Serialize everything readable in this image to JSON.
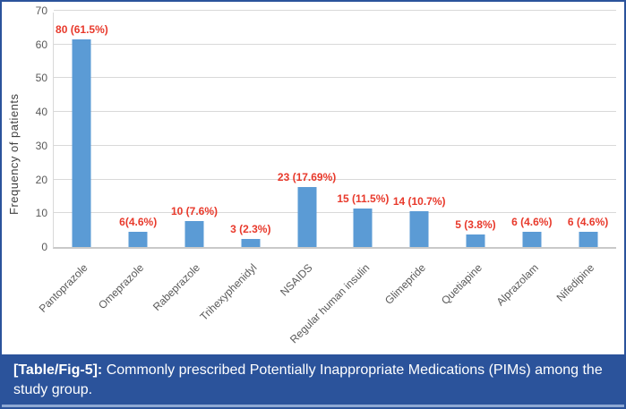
{
  "figure": {
    "caption_tag": "[Table/Fig-5]:",
    "caption_text": " Commonly prescribed Potentially Inappropriate Medications (PIMs) among the study group."
  },
  "chart_data": {
    "type": "bar",
    "title": "",
    "xlabel": "",
    "ylabel": "Frequency of patients",
    "ylim": [
      0,
      70
    ],
    "ytick_interval": 10,
    "grid": true,
    "legend": false,
    "categories": [
      "Pantoprazole",
      "Omeprazole",
      "Rabeprazole",
      "Trihexyphenidyl",
      "NSAIDS",
      "Regular human insulin",
      "Glimepride",
      "Quetiapine",
      "Alprazolam",
      "Nifedipine"
    ],
    "values": [
      61.5,
      4.6,
      7.6,
      2.3,
      17.69,
      11.5,
      10.7,
      3.8,
      4.6,
      4.6
    ],
    "patient_counts": [
      80,
      6,
      10,
      3,
      23,
      15,
      14,
      5,
      6,
      6
    ],
    "data_labels": [
      "80 (61.5%)",
      "6(4.6%)",
      "10 (7.6%)",
      "3 (2.3%)",
      "23 (17.69%)",
      "15 (11.5%)",
      "14 (10.7%)",
      "5 (3.8%)",
      "6 (4.6%)",
      "6 (4.6%)"
    ]
  },
  "colors": {
    "bar": "#5b9bd5",
    "data_label": "#e8392b",
    "gridline": "#d9d9d9",
    "axis_text": "#595959",
    "banner": "#2b539b",
    "banner_text": "#ffffff",
    "figure_border": "#2b539b"
  }
}
